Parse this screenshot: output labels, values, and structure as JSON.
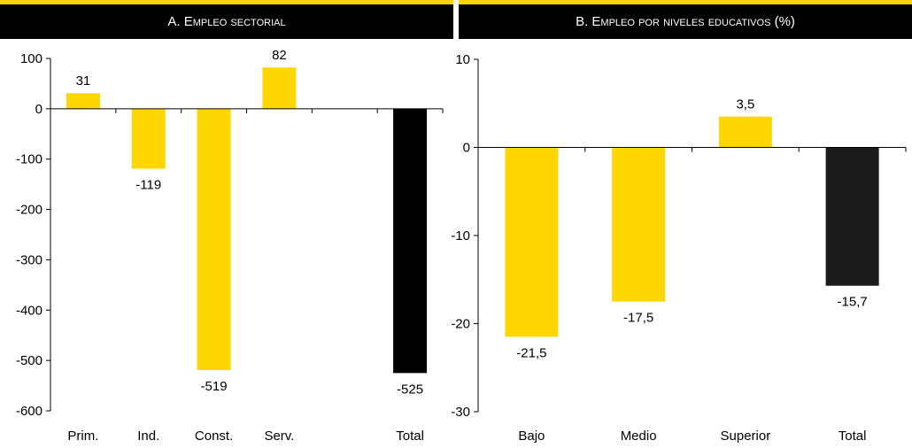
{
  "chart_data": [
    {
      "type": "bar",
      "title": "A. Empleo sectorial",
      "categories": [
        "Prim.",
        "Ind.",
        "Const.",
        "Serv.",
        "",
        "Total"
      ],
      "values": [
        31,
        -119,
        -519,
        82,
        null,
        -525
      ],
      "value_labels": [
        "31",
        "-119",
        "-519",
        "82",
        "",
        "-525"
      ],
      "colors": [
        "#ffd700",
        "#ffd700",
        "#ffd700",
        "#ffd700",
        "#ffd700",
        "#000000"
      ],
      "ylim": [
        -600,
        100
      ],
      "yticks": [
        100,
        0,
        -100,
        -200,
        -300,
        -400,
        -500,
        -600
      ],
      "ytick_labels": [
        "100",
        "0",
        "-100",
        "-200",
        "-300",
        "-400",
        "-500",
        "-600"
      ],
      "xlabel": "",
      "ylabel": "",
      "grid": false
    },
    {
      "type": "bar",
      "title": "B. Empleo por niveles educativos (%)",
      "categories": [
        "Bajo",
        "Medio",
        "Superior",
        "Total"
      ],
      "values": [
        -21.5,
        -17.5,
        3.5,
        -15.7
      ],
      "value_labels": [
        "-21,5",
        "-17,5",
        "3,5",
        "-15,7"
      ],
      "colors": [
        "#ffd700",
        "#ffd700",
        "#ffd700",
        "#1a1a1a"
      ],
      "ylim": [
        -30,
        10
      ],
      "yticks": [
        10,
        0,
        -10,
        -20,
        -30
      ],
      "ytick_labels": [
        "10",
        "0",
        "-10",
        "-20",
        "-30"
      ],
      "xlabel": "",
      "ylabel": "",
      "grid": false
    }
  ]
}
